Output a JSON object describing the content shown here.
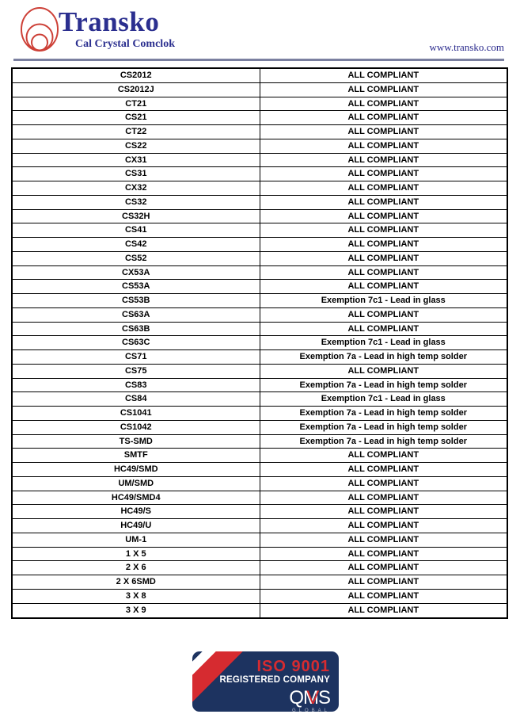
{
  "header": {
    "brand": "Transko",
    "tagline": "Cal Crystal Comclok",
    "website": "www.transko.com"
  },
  "table": {
    "columns": [
      "part_number",
      "compliance_status"
    ],
    "rows": [
      [
        "CS2012",
        "ALL COMPLIANT"
      ],
      [
        "CS2012J",
        "ALL COMPLIANT"
      ],
      [
        "CT21",
        "ALL COMPLIANT"
      ],
      [
        "CS21",
        "ALL COMPLIANT"
      ],
      [
        "CT22",
        "ALL COMPLIANT"
      ],
      [
        "CS22",
        "ALL COMPLIANT"
      ],
      [
        "CX31",
        "ALL COMPLIANT"
      ],
      [
        "CS31",
        "ALL COMPLIANT"
      ],
      [
        "CX32",
        "ALL COMPLIANT"
      ],
      [
        "CS32",
        "ALL COMPLIANT"
      ],
      [
        "CS32H",
        "ALL COMPLIANT"
      ],
      [
        "CS41",
        "ALL COMPLIANT"
      ],
      [
        "CS42",
        "ALL COMPLIANT"
      ],
      [
        "CS52",
        "ALL COMPLIANT"
      ],
      [
        "CX53A",
        "ALL COMPLIANT"
      ],
      [
        "CS53A",
        "ALL COMPLIANT"
      ],
      [
        "CS53B",
        "Exemption 7c1 - Lead in glass"
      ],
      [
        "CS63A",
        "ALL COMPLIANT"
      ],
      [
        "CS63B",
        "ALL COMPLIANT"
      ],
      [
        "CS63C",
        "Exemption 7c1 - Lead in glass"
      ],
      [
        "CS71",
        "Exemption 7a - Lead in high temp solder"
      ],
      [
        "CS75",
        "ALL COMPLIANT"
      ],
      [
        "CS83",
        "Exemption 7a - Lead in high temp solder"
      ],
      [
        "CS84",
        "Exemption 7c1 - Lead in glass"
      ],
      [
        "CS1041",
        "Exemption 7a - Lead in high temp solder"
      ],
      [
        "CS1042",
        "Exemption 7a - Lead in high temp solder"
      ],
      [
        "TS-SMD",
        "Exemption 7a - Lead in high temp solder"
      ],
      [
        "SMTF",
        "ALL COMPLIANT"
      ],
      [
        "HC49/SMD",
        "ALL COMPLIANT"
      ],
      [
        "UM/SMD",
        "ALL COMPLIANT"
      ],
      [
        "HC49/SMD4",
        "ALL COMPLIANT"
      ],
      [
        "HC49/S",
        "ALL COMPLIANT"
      ],
      [
        "HC49/U",
        "ALL COMPLIANT"
      ],
      [
        "UM-1",
        "ALL COMPLIANT"
      ],
      [
        "1 X 5",
        "ALL COMPLIANT"
      ],
      [
        "2 X 6",
        "ALL COMPLIANT"
      ],
      [
        "2 X 6SMD",
        "ALL COMPLIANT"
      ],
      [
        "3 X 8",
        "ALL COMPLIANT"
      ],
      [
        "3 X 9",
        "ALL COMPLIANT"
      ]
    ]
  },
  "badge": {
    "iso": "ISO 9001",
    "registered": "REGISTERED COMPANY",
    "qms": "QMS",
    "qms_accent": "V",
    "global": "GLOBAL"
  },
  "colors": {
    "brand_navy": "#2b2f8f",
    "logo_red": "#cd4037",
    "rule_slate": "#7b80a0",
    "badge_navy": "#1d3360",
    "badge_red": "#d62b30"
  }
}
